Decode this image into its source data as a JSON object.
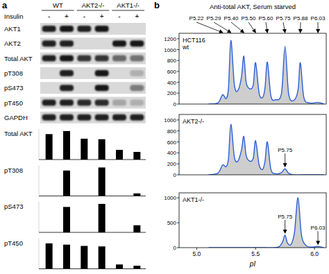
{
  "figure": {
    "panel_a": {
      "label": "a",
      "groups": [
        "WT",
        "AKT2-/-",
        "AKT1-/-"
      ],
      "treatment": "Insulin",
      "lanes": [
        "-",
        "+",
        "-",
        "+",
        "-",
        "+"
      ],
      "rows": [
        {
          "name": "AKT1",
          "bands": [
            0.9,
            0.95,
            0.9,
            0.95,
            0,
            0
          ]
        },
        {
          "name": "AKT2",
          "bands": [
            0.9,
            0.9,
            0,
            0,
            0.95,
            0.95
          ]
        },
        {
          "name": "Total AKT",
          "bands": [
            0.9,
            0.95,
            0.8,
            0.8,
            0.55,
            0.5
          ]
        },
        {
          "name": "pT308",
          "bands": [
            0,
            0.9,
            0,
            0.95,
            0,
            0.2
          ]
        },
        {
          "name": "pS473",
          "bands": [
            0,
            0.9,
            0,
            0.95,
            0,
            0.45
          ]
        },
        {
          "name": "pT450",
          "bands": [
            0.9,
            0.9,
            0.85,
            0.85,
            0.25,
            0.2
          ]
        },
        {
          "name": "GAPDH",
          "bands": [
            0.9,
            0.9,
            0.9,
            0.9,
            0.9,
            0.9
          ]
        }
      ]
    },
    "panel_b": {
      "label": "b",
      "title": "Anti-total AKT, Serum starved",
      "peaks": [
        {
          "label": "P5.22",
          "x": 5.22
        },
        {
          "label": "P5.29",
          "x": 5.29
        },
        {
          "label": "P5.40",
          "x": 5.4
        },
        {
          "label": "P5.50",
          "x": 5.5
        },
        {
          "label": "P5.60",
          "x": 5.6
        },
        {
          "label": "P5.75",
          "x": 5.75
        },
        {
          "label": "P5.88",
          "x": 5.88
        },
        {
          "label": "P6.03",
          "x": 6.03
        }
      ]
    }
  },
  "chart_data": [
    {
      "type": "bar",
      "title": "Total AKT",
      "categories": [
        null,
        null,
        null,
        null,
        null,
        null
      ],
      "values": [
        1.0,
        1.12,
        0.82,
        0.8,
        0.38,
        0.3
      ],
      "color": "#000000",
      "ylim": [
        0,
        1.2
      ],
      "tick_labels": false
    },
    {
      "type": "bar",
      "title": "pT308",
      "categories": [
        null,
        null,
        null,
        null,
        null,
        null
      ],
      "values": [
        0,
        1.0,
        0,
        1.12,
        0,
        0.1
      ],
      "color": "#000000",
      "ylim": [
        0,
        1.2
      ],
      "tick_labels": false
    },
    {
      "type": "bar",
      "title": "pS473",
      "categories": [
        null,
        null,
        null,
        null,
        null,
        null
      ],
      "values": [
        0,
        1.0,
        0,
        1.12,
        0,
        0.28
      ],
      "color": "#000000",
      "ylim": [
        0,
        1.2
      ],
      "tick_labels": false
    },
    {
      "type": "bar",
      "title": "pT450",
      "categories": [
        null,
        null,
        null,
        null,
        null,
        null
      ],
      "values": [
        1.0,
        0.95,
        0.9,
        0.88,
        0.17,
        0.12
      ],
      "color": "#000000",
      "ylim": [
        0,
        1.2
      ],
      "tick_labels": false
    },
    {
      "type": "line",
      "title": "HCT116 wt",
      "color": "#2b5fd9",
      "x": [
        5.1,
        5.18,
        5.22,
        5.25,
        5.27,
        5.29,
        5.32,
        5.35,
        5.38,
        5.4,
        5.42,
        5.45,
        5.48,
        5.5,
        5.53,
        5.56,
        5.58,
        5.6,
        5.63,
        5.67,
        5.72,
        5.75,
        5.78,
        5.82,
        5.86,
        5.88,
        5.91,
        5.96,
        6.03,
        6.08
      ],
      "values": [
        0,
        20,
        170,
        100,
        300,
        1170,
        350,
        250,
        500,
        880,
        400,
        280,
        350,
        760,
        200,
        120,
        300,
        770,
        150,
        80,
        200,
        1060,
        200,
        60,
        250,
        760,
        120,
        20,
        30,
        0
      ],
      "xlim": [
        4.85,
        6.1
      ],
      "ylim": [
        0,
        1300
      ],
      "yticks": [
        0,
        200,
        400,
        600,
        800,
        1000,
        1200
      ],
      "tick_labels": "y"
    },
    {
      "type": "line",
      "title": "AKT2-/-",
      "color": "#2b5fd9",
      "x": [
        5.1,
        5.18,
        5.22,
        5.25,
        5.27,
        5.29,
        5.32,
        5.35,
        5.38,
        5.4,
        5.42,
        5.45,
        5.48,
        5.5,
        5.53,
        5.56,
        5.58,
        5.6,
        5.63,
        5.67,
        5.72,
        5.75,
        5.78,
        5.82,
        5.9,
        6.08
      ],
      "values": [
        0,
        30,
        180,
        150,
        300,
        920,
        320,
        250,
        450,
        700,
        350,
        250,
        300,
        620,
        180,
        100,
        250,
        600,
        100,
        20,
        40,
        110,
        30,
        0,
        0,
        0
      ],
      "xlim": [
        4.85,
        6.1
      ],
      "ylim": [
        0,
        1100
      ],
      "yticks": [
        0,
        200,
        400,
        600,
        800,
        1000
      ],
      "tick_labels": "y",
      "annotations": [
        {
          "text": "P5.75",
          "x": 5.75
        }
      ]
    },
    {
      "type": "line",
      "title": "AKT1-/-",
      "color": "#2b5fd9",
      "x": [
        5.1,
        5.5,
        5.65,
        5.7,
        5.73,
        5.75,
        5.77,
        5.8,
        5.83,
        5.86,
        5.89,
        5.93,
        5.98,
        6.03,
        6.08
      ],
      "values": [
        0,
        0,
        0,
        20,
        120,
        250,
        100,
        60,
        300,
        1000,
        250,
        40,
        10,
        25,
        0
      ],
      "xlim": [
        4.85,
        6.1
      ],
      "ylim": [
        0,
        1100
      ],
      "yticks": [
        0,
        500,
        1000
      ],
      "xticks": [
        {
          "value": 5,
          "label": "5.0"
        },
        5.5,
        {
          "value": 6,
          "label": "6.0"
        }
      ],
      "xlabel": "pI",
      "annotations": [
        {
          "text": "P5.75",
          "x": 5.75
        },
        {
          "text": "P6.03",
          "x": 6.03
        }
      ]
    }
  ]
}
